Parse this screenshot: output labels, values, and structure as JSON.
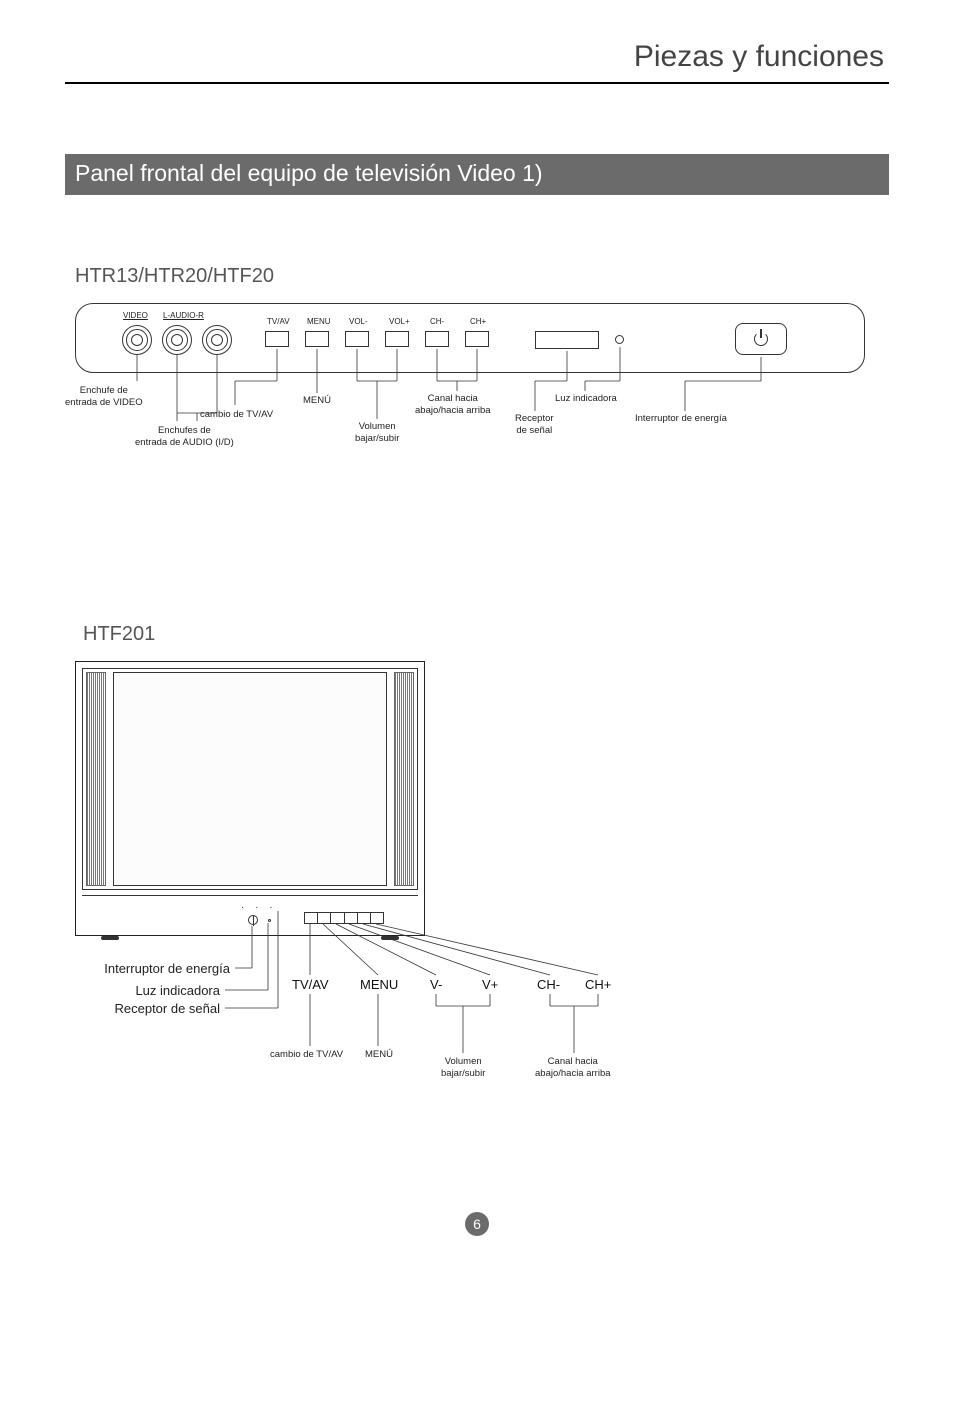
{
  "page": {
    "title": "Piezas y funciones",
    "section_bar": "Panel frontal del equipo de televisión   Video 1)",
    "page_number": "6"
  },
  "colors": {
    "bar_bg": "#6b6b6b",
    "bar_fg": "#ffffff",
    "line": "#333333",
    "heading": "#555555"
  },
  "diagram1": {
    "model_heading": "HTR13/HTR20/HTF20",
    "top_labels": {
      "video": "VIDEO",
      "audio": "L-AUDIO-R",
      "tvav": "TV/AV",
      "menu": "MENU",
      "volminus": "VOL-",
      "volplus": "VOL+",
      "chminus": "CH-",
      "chplus": "CH+"
    },
    "callouts": {
      "video_in": "Enchufe de\nentrada de VIDEO",
      "audio_in": "Enchufes de\nentrada de AUDIO (I/D)",
      "tvav_switch": "cambio de TV/AV",
      "menu": "MENÚ",
      "volume": "Volumen\nbajar/subir",
      "channel": "Canal hacia\nabajo/hacia arriba",
      "indicator": "Luz indicadora",
      "receiver": "Receptor\nde señal",
      "power": "Interruptor de energía"
    }
  },
  "diagram2": {
    "model_heading": "HTF201",
    "left_labels": {
      "power": "Interruptor de energía",
      "indicator": "Luz indicadora",
      "receiver": "Receptor de señal"
    },
    "button_labels": {
      "tvav": "TV/AV",
      "menu": "MENU",
      "vminus": "V-",
      "vplus": "V+",
      "chminus": "CH-",
      "chplus": "CH+"
    },
    "callouts": {
      "tvav_switch": "cambio de TV/AV",
      "menu": "MENÚ",
      "volume": "Volumen\nbajar/subir",
      "channel": "Canal hacia\nabajo/hacia arriba"
    }
  }
}
